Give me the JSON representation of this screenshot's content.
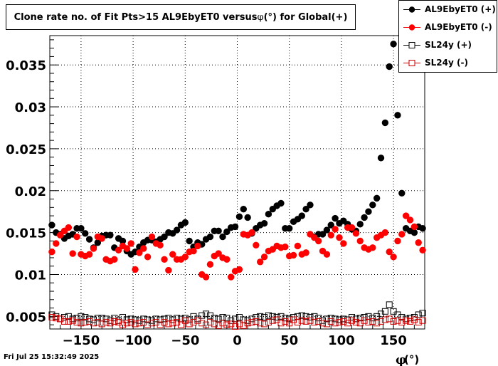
{
  "title_pre": "Clone rate no. of Fit Pts>15 AL9EbyET0 versus ",
  "title_phi": "φ",
  "title_post": "(°) for Global(+)",
  "timestamp": "Fri Jul 25 15:32:49 2025",
  "chart_data": {
    "type": "scatter",
    "title": "Clone rate no. of Fit Pts>15 AL9EbyET0 versus φ(°) for Global(+)",
    "xlabel": "φ(°)",
    "ylabel": "",
    "xlim": [
      -180,
      180
    ],
    "ylim": [
      0.0035,
      0.0385
    ],
    "xticks": [
      -150,
      -100,
      -50,
      0,
      50,
      100,
      150
    ],
    "xtick_labels": [
      "−150",
      "−100",
      "−50",
      "0",
      "50",
      "100",
      "150"
    ],
    "yticks": [
      0.005,
      0.01,
      0.015,
      0.02,
      0.025,
      0.03,
      0.035
    ],
    "ytick_labels": [
      "0.005",
      "0.01",
      "0.015",
      "0.02",
      "0.025",
      "0.03",
      "0.035"
    ],
    "grid": true,
    "legend_position": "top-right",
    "x": [
      -178,
      -174,
      -170,
      -166,
      -162,
      -158,
      -154,
      -150,
      -146,
      -142,
      -138,
      -134,
      -130,
      -126,
      -122,
      -118,
      -114,
      -110,
      -106,
      -102,
      -98,
      -94,
      -90,
      -86,
      -82,
      -78,
      -74,
      -70,
      -66,
      -62,
      -58,
      -54,
      -50,
      -46,
      -42,
      -38,
      -34,
      -30,
      -26,
      -22,
      -18,
      -14,
      -10,
      -6,
      -2,
      2,
      6,
      10,
      14,
      18,
      22,
      26,
      30,
      34,
      38,
      42,
      46,
      50,
      54,
      58,
      62,
      66,
      70,
      74,
      78,
      82,
      86,
      90,
      94,
      98,
      102,
      106,
      110,
      114,
      118,
      122,
      126,
      130,
      134,
      138,
      142,
      146,
      150,
      154,
      158,
      162,
      166,
      170,
      174,
      178
    ],
    "series": [
      {
        "name": "AL9EbyET0 (+)",
        "marker": "filled-circle",
        "color": "#000000",
        "values": [
          0.0159,
          0.015,
          0.0148,
          0.0143,
          0.0146,
          0.0148,
          0.0155,
          0.0155,
          0.0149,
          0.0142,
          0.0132,
          0.0138,
          0.0146,
          0.0147,
          0.0147,
          0.0132,
          0.0143,
          0.014,
          0.0128,
          0.0124,
          0.0127,
          0.0133,
          0.0138,
          0.0141,
          0.0141,
          0.0139,
          0.0142,
          0.0145,
          0.015,
          0.0149,
          0.0153,
          0.0159,
          0.0162,
          0.014,
          0.0133,
          0.0138,
          0.0136,
          0.0142,
          0.0145,
          0.0152,
          0.0152,
          0.0145,
          0.0151,
          0.0156,
          0.0157,
          0.0169,
          0.0178,
          0.0168,
          0.0149,
          0.0155,
          0.0159,
          0.0161,
          0.0172,
          0.0178,
          0.0182,
          0.0185,
          0.0155,
          0.0155,
          0.0163,
          0.0166,
          0.017,
          0.0178,
          0.0183,
          0.0145,
          0.0148,
          0.0148,
          0.0153,
          0.0159,
          0.0167,
          0.0161,
          0.0164,
          0.016,
          0.0154,
          0.0152,
          0.016,
          0.0168,
          0.0175,
          0.0183,
          0.0191,
          0.0239,
          0.0281,
          0.0348,
          0.0375,
          0.029,
          0.0197,
          0.0155,
          0.0152,
          0.015,
          0.0157,
          0.0155
        ]
      },
      {
        "name": "AL9EbyET0 (-)",
        "marker": "filled-circle",
        "color": "#ff0000",
        "values": [
          0.0127,
          0.0137,
          0.0147,
          0.0152,
          0.0156,
          0.0125,
          0.0145,
          0.0124,
          0.0122,
          0.0124,
          0.0131,
          0.0145,
          0.0143,
          0.0118,
          0.0116,
          0.0118,
          0.0129,
          0.0134,
          0.0131,
          0.0137,
          0.0106,
          0.0126,
          0.0131,
          0.0121,
          0.0145,
          0.0137,
          0.0135,
          0.0118,
          0.0105,
          0.0124,
          0.0118,
          0.0118,
          0.0121,
          0.0127,
          0.0128,
          0.0134,
          0.01,
          0.0097,
          0.0112,
          0.0122,
          0.0125,
          0.012,
          0.0118,
          0.0097,
          0.0104,
          0.0106,
          0.0148,
          0.0147,
          0.015,
          0.0135,
          0.0115,
          0.0121,
          0.0128,
          0.013,
          0.0134,
          0.0132,
          0.0133,
          0.0122,
          0.0123,
          0.0134,
          0.0124,
          0.0126,
          0.0148,
          0.0144,
          0.014,
          0.0128,
          0.0124,
          0.0147,
          0.0154,
          0.0144,
          0.0137,
          0.0156,
          0.0156,
          0.0149,
          0.014,
          0.0132,
          0.013,
          0.0132,
          0.0144,
          0.0147,
          0.015,
          0.0127,
          0.0121,
          0.014,
          0.0148,
          0.017,
          0.0165,
          0.0157,
          0.0138,
          0.0129
        ]
      },
      {
        "name": "SL24y (+)",
        "marker": "open-square",
        "color": "#000000",
        "values": [
          0.0052,
          0.005,
          0.0047,
          0.0049,
          0.005,
          0.0047,
          0.0048,
          0.005,
          0.0049,
          0.0047,
          0.0046,
          0.0048,
          0.0048,
          0.0047,
          0.0045,
          0.0048,
          0.0045,
          0.0049,
          0.0046,
          0.0047,
          0.0046,
          0.0045,
          0.0047,
          0.0046,
          0.0045,
          0.0047,
          0.0046,
          0.0047,
          0.0048,
          0.0046,
          0.0048,
          0.0047,
          0.0048,
          0.0046,
          0.005,
          0.0047,
          0.0051,
          0.0053,
          0.0051,
          0.0048,
          0.0047,
          0.0049,
          0.0048,
          0.0045,
          0.0047,
          0.0049,
          0.0046,
          0.0045,
          0.0047,
          0.0049,
          0.005,
          0.0049,
          0.0051,
          0.005,
          0.0049,
          0.005,
          0.0048,
          0.0047,
          0.0049,
          0.005,
          0.0051,
          0.005,
          0.0049,
          0.005,
          0.0048,
          0.0045,
          0.0047,
          0.0048,
          0.0047,
          0.0046,
          0.0047,
          0.0046,
          0.0049,
          0.0047,
          0.0048,
          0.0049,
          0.005,
          0.0048,
          0.005,
          0.0053,
          0.0056,
          0.0064,
          0.0056,
          0.0052,
          0.0049,
          0.0047,
          0.0048,
          0.0049,
          0.0052,
          0.0054
        ]
      },
      {
        "name": "SL24y (-)",
        "marker": "open-square",
        "color": "#cc0000",
        "values": [
          0.0049,
          0.0048,
          0.0047,
          0.0044,
          0.0044,
          0.0045,
          0.0043,
          0.0042,
          0.0043,
          0.0044,
          0.0042,
          0.0043,
          0.0041,
          0.0043,
          0.0042,
          0.0044,
          0.0043,
          0.004,
          0.0042,
          0.0043,
          0.0041,
          0.0042,
          0.0043,
          0.004,
          0.0042,
          0.0043,
          0.004,
          0.0043,
          0.0041,
          0.0042,
          0.0043,
          0.004,
          0.0045,
          0.0041,
          0.0043,
          0.0045,
          0.0042,
          0.004,
          0.0043,
          0.0041,
          0.0039,
          0.0042,
          0.004,
          0.0041,
          0.0038,
          0.0041,
          0.0039,
          0.0042,
          0.0043,
          0.0044,
          0.0042,
          0.0041,
          0.0043,
          0.0045,
          0.0046,
          0.0042,
          0.0044,
          0.0042,
          0.0046,
          0.0043,
          0.0045,
          0.0044,
          0.0045,
          0.0043,
          0.0044,
          0.0042,
          0.0041,
          0.0044,
          0.0042,
          0.0043,
          0.0044,
          0.0042,
          0.0045,
          0.0043,
          0.0042,
          0.0045,
          0.0043,
          0.0044,
          0.0042,
          0.0044,
          0.0046,
          0.0047,
          0.0044,
          0.0045,
          0.0043,
          0.0045,
          0.0044,
          0.0046,
          0.0043,
          0.0045
        ]
      }
    ]
  }
}
